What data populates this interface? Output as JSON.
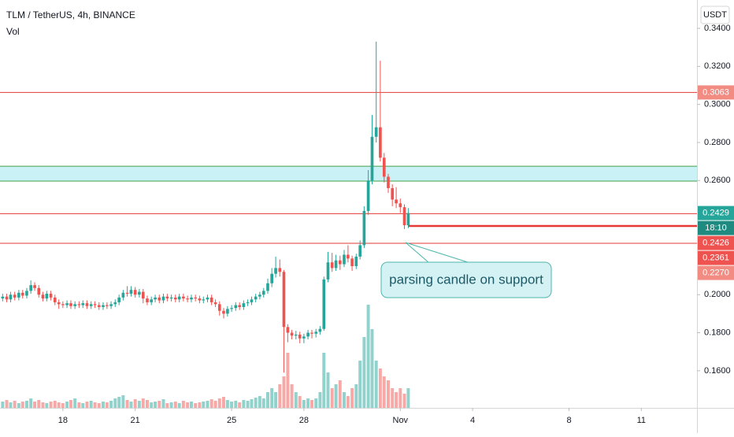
{
  "chart_data": {
    "type": "candlestick",
    "title": "TLM / TetherUS, 4h, BINANCE",
    "volume_label": "Vol",
    "currency": "USDT",
    "up_color": "#26a69a",
    "down_color": "#ef5350",
    "xlim": [
      15.39,
      44.31
    ],
    "ylim": [
      0.1405,
      0.3549
    ],
    "xticks": [
      18,
      21,
      25,
      28,
      {
        "value": 32,
        "label": "Nov"
      },
      {
        "value": 35,
        "label": "4"
      },
      {
        "value": 39,
        "label": "8"
      },
      {
        "value": 42,
        "label": "11"
      }
    ],
    "yticks": [
      {
        "value": 0.34,
        "label": "0.3400"
      },
      {
        "value": 0.32,
        "label": "0.3200"
      },
      {
        "value": 0.3,
        "label": "0.3000"
      },
      {
        "value": 0.28,
        "label": "0.2800"
      },
      {
        "value": 0.26,
        "label": "0.2600"
      },
      {
        "value": 0.2,
        "label": "0.2000"
      },
      {
        "value": 0.18,
        "label": "0.1800"
      },
      {
        "value": 0.16,
        "label": "0.1600"
      }
    ],
    "x": [
      15.5,
      15.67,
      15.83,
      16,
      16.17,
      16.33,
      16.5,
      16.67,
      16.83,
      17,
      17.17,
      17.33,
      17.5,
      17.67,
      17.83,
      18,
      18.17,
      18.33,
      18.5,
      18.67,
      18.83,
      19,
      19.17,
      19.33,
      19.5,
      19.67,
      19.83,
      20,
      20.17,
      20.33,
      20.5,
      20.67,
      20.83,
      21,
      21.17,
      21.33,
      21.5,
      21.67,
      21.83,
      22,
      22.17,
      22.33,
      22.5,
      22.67,
      22.83,
      23,
      23.17,
      23.33,
      23.5,
      23.67,
      23.83,
      24,
      24.17,
      24.33,
      24.5,
      24.67,
      24.83,
      25,
      25.17,
      25.33,
      25.5,
      25.67,
      25.83,
      26,
      26.17,
      26.33,
      26.5,
      26.67,
      26.83,
      27,
      27.17,
      27.33,
      27.5,
      27.67,
      27.83,
      28,
      28.17,
      28.33,
      28.5,
      28.67,
      28.83,
      29,
      29.17,
      29.33,
      29.5,
      29.67,
      29.83,
      30,
      30.17,
      30.33,
      30.5,
      30.67,
      30.83,
      31,
      31.17,
      31.33,
      31.5,
      31.67,
      31.83,
      32,
      32.17,
      32.33
    ],
    "open": [
      0.198,
      0.199,
      0.1975,
      0.2,
      0.1985,
      0.201,
      0.1995,
      0.202,
      0.205,
      0.2035,
      0.2,
      0.198,
      0.2005,
      0.1985,
      0.196,
      0.195,
      0.1945,
      0.1955,
      0.194,
      0.195,
      0.1945,
      0.1955,
      0.194,
      0.195,
      0.1945,
      0.1935,
      0.1945,
      0.194,
      0.195,
      0.196,
      0.1985,
      0.201,
      0.2005,
      0.2025,
      0.2,
      0.2015,
      0.198,
      0.196,
      0.1975,
      0.1985,
      0.197,
      0.199,
      0.198,
      0.1985,
      0.1975,
      0.199,
      0.198,
      0.1975,
      0.1985,
      0.198,
      0.197,
      0.1975,
      0.1985,
      0.196,
      0.195,
      0.1915,
      0.19,
      0.1925,
      0.193,
      0.1945,
      0.1935,
      0.1955,
      0.196,
      0.1975,
      0.199,
      0.2,
      0.202,
      0.206,
      0.211,
      0.214,
      0.212,
      0.183,
      0.18,
      0.1785,
      0.179,
      0.177,
      0.178,
      0.18,
      0.1795,
      0.1805,
      0.182,
      0.208,
      0.217,
      0.214,
      0.218,
      0.216,
      0.221,
      0.219,
      0.215,
      0.22,
      0.226,
      0.244,
      0.26,
      0.283,
      0.288,
      0.272,
      0.262,
      0.256,
      0.25,
      0.248,
      0.246,
      0.2365
    ],
    "high": [
      0.2005,
      0.2005,
      0.2015,
      0.2015,
      0.2025,
      0.2025,
      0.2035,
      0.2075,
      0.2065,
      0.205,
      0.2015,
      0.202,
      0.202,
      0.2,
      0.1975,
      0.1965,
      0.197,
      0.197,
      0.1965,
      0.1965,
      0.197,
      0.197,
      0.1965,
      0.1965,
      0.196,
      0.196,
      0.196,
      0.1965,
      0.1975,
      0.2,
      0.2025,
      0.2045,
      0.2045,
      0.204,
      0.203,
      0.203,
      0.1995,
      0.199,
      0.2,
      0.2,
      0.2005,
      0.2005,
      0.2,
      0.2,
      0.2005,
      0.2005,
      0.1995,
      0.2,
      0.2,
      0.1995,
      0.199,
      0.2,
      0.2,
      0.1975,
      0.1965,
      0.193,
      0.194,
      0.1945,
      0.196,
      0.196,
      0.197,
      0.1975,
      0.199,
      0.2005,
      0.2015,
      0.2035,
      0.2085,
      0.214,
      0.22,
      0.2185,
      0.213,
      0.1845,
      0.1815,
      0.181,
      0.1805,
      0.1795,
      0.1815,
      0.1815,
      0.182,
      0.1835,
      0.2095,
      0.2225,
      0.222,
      0.221,
      0.2205,
      0.2235,
      0.226,
      0.2205,
      0.2215,
      0.2285,
      0.2465,
      0.2655,
      0.2945,
      0.333,
      0.323,
      0.2745,
      0.2635,
      0.258,
      0.2565,
      0.2505,
      0.2475,
      0.2455
    ],
    "low": [
      0.1965,
      0.196,
      0.196,
      0.197,
      0.197,
      0.198,
      0.198,
      0.2005,
      0.202,
      0.1985,
      0.1965,
      0.1965,
      0.197,
      0.1945,
      0.1925,
      0.193,
      0.193,
      0.1925,
      0.1925,
      0.193,
      0.193,
      0.1925,
      0.1925,
      0.193,
      0.192,
      0.192,
      0.1925,
      0.1925,
      0.1935,
      0.1945,
      0.197,
      0.199,
      0.199,
      0.1985,
      0.1985,
      0.1955,
      0.1945,
      0.1945,
      0.196,
      0.1955,
      0.1955,
      0.1965,
      0.1965,
      0.196,
      0.196,
      0.1965,
      0.196,
      0.196,
      0.1965,
      0.1955,
      0.1955,
      0.196,
      0.1945,
      0.1935,
      0.189,
      0.1875,
      0.1885,
      0.191,
      0.1915,
      0.192,
      0.192,
      0.194,
      0.1945,
      0.196,
      0.1975,
      0.1985,
      0.2005,
      0.204,
      0.209,
      0.2095,
      0.159,
      0.175,
      0.1765,
      0.1765,
      0.1745,
      0.1745,
      0.1765,
      0.177,
      0.1775,
      0.179,
      0.181,
      0.2065,
      0.212,
      0.2125,
      0.213,
      0.2145,
      0.217,
      0.2125,
      0.2135,
      0.2185,
      0.2245,
      0.242,
      0.258,
      0.28,
      0.27,
      0.259,
      0.2535,
      0.2465,
      0.2455,
      0.243,
      0.2345,
      0.235
    ],
    "close": [
      0.199,
      0.1975,
      0.2,
      0.1985,
      0.201,
      0.1995,
      0.202,
      0.205,
      0.2035,
      0.2,
      0.198,
      0.2005,
      0.1985,
      0.196,
      0.195,
      0.1945,
      0.1955,
      0.194,
      0.195,
      0.1945,
      0.1955,
      0.194,
      0.195,
      0.1945,
      0.1935,
      0.1945,
      0.194,
      0.195,
      0.196,
      0.1985,
      0.201,
      0.2005,
      0.2025,
      0.2,
      0.2015,
      0.198,
      0.196,
      0.1975,
      0.1985,
      0.197,
      0.199,
      0.198,
      0.1985,
      0.1975,
      0.199,
      0.198,
      0.1975,
      0.1985,
      0.198,
      0.197,
      0.1975,
      0.1985,
      0.196,
      0.195,
      0.1915,
      0.19,
      0.1925,
      0.193,
      0.1945,
      0.1935,
      0.1955,
      0.196,
      0.1975,
      0.199,
      0.2,
      0.202,
      0.206,
      0.211,
      0.214,
      0.212,
      0.183,
      0.18,
      0.1785,
      0.179,
      0.177,
      0.178,
      0.18,
      0.1795,
      0.1805,
      0.182,
      0.208,
      0.217,
      0.214,
      0.218,
      0.216,
      0.221,
      0.219,
      0.215,
      0.22,
      0.226,
      0.244,
      0.26,
      0.283,
      0.288,
      0.272,
      0.262,
      0.256,
      0.25,
      0.248,
      0.246,
      0.2365,
      0.2429
    ],
    "volume": [
      8,
      10,
      7,
      9,
      6,
      8,
      9,
      12,
      8,
      10,
      7,
      6,
      8,
      9,
      7,
      6,
      8,
      10,
      12,
      7,
      6,
      8,
      9,
      7,
      6,
      8,
      7,
      9,
      12,
      14,
      16,
      10,
      8,
      11,
      9,
      12,
      10,
      7,
      8,
      9,
      11,
      6,
      7,
      8,
      6,
      9,
      7,
      8,
      6,
      7,
      8,
      9,
      11,
      9,
      12,
      14,
      10,
      8,
      9,
      7,
      10,
      9,
      11,
      13,
      15,
      12,
      20,
      25,
      20,
      30,
      40,
      70,
      30,
      20,
      15,
      10,
      12,
      10,
      12,
      20,
      70,
      45,
      25,
      30,
      35,
      20,
      15,
      25,
      30,
      60,
      90,
      131,
      100,
      60,
      50,
      40,
      35,
      25,
      20,
      25,
      18,
      25
    ],
    "zone": {
      "low": 0.2597,
      "high": 0.2675
    },
    "current_price": {
      "value": 0.2429,
      "label": "0.2429",
      "countdown": "18:10"
    },
    "price_lines": [
      {
        "value": 0.3063,
        "label": "0.3063"
      },
      {
        "value": 0.2426,
        "label": "0.2426"
      },
      {
        "value": 0.2361,
        "label": "0.2361"
      },
      {
        "value": 0.227,
        "label": "0.2270"
      }
    ],
    "annotation": "parsing candle on support"
  }
}
